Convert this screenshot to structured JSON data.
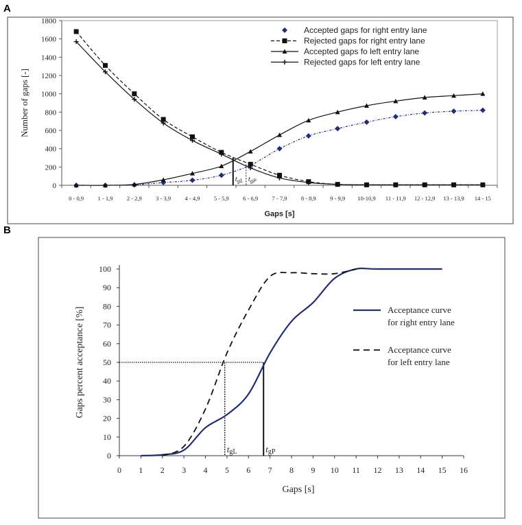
{
  "chart_data": [
    {
      "panel": "A",
      "type": "line",
      "title": "",
      "xlabel": "Gaps [s]",
      "ylabel": "Number of gaps [-]",
      "ylim": [
        0,
        1800
      ],
      "yticks": [
        0,
        200,
        400,
        600,
        800,
        1000,
        1200,
        1400,
        1600,
        1800
      ],
      "categories": [
        "0 - 0,9",
        "1 - 1,9",
        "2 - 2,9",
        "3 - 3,9",
        "4 - 4,9",
        "5 - 5,9",
        "6 - 6,9",
        "7 - 7,9",
        "8 - 8,9",
        "9 - 9,9",
        "10-10,9",
        "11 - 11,9",
        "12 - 12,9",
        "13 - 13,9",
        "14 - 15"
      ],
      "legend_position": "top-right",
      "series": [
        {
          "name": "Accepted gaps for right entry lane",
          "marker": "diamond",
          "line": "dash-dot",
          "color": "#1f2d7a",
          "values": [
            0,
            0,
            5,
            30,
            55,
            110,
            220,
            400,
            540,
            620,
            690,
            750,
            790,
            810,
            820
          ]
        },
        {
          "name": "Rejected gaps for right entry lane",
          "marker": "square",
          "line": "dash",
          "color": "#111111",
          "values": [
            1680,
            1310,
            1000,
            720,
            530,
            360,
            230,
            110,
            40,
            10,
            5,
            5,
            5,
            5,
            5
          ]
        },
        {
          "name": "Accepted gaps fo left entry lane",
          "marker": "triangle",
          "line": "solid",
          "color": "#111111",
          "values": [
            0,
            0,
            10,
            60,
            130,
            210,
            370,
            550,
            710,
            800,
            870,
            920,
            960,
            980,
            1000
          ]
        },
        {
          "name": "Rejected gaps for left entry lane",
          "marker": "plus",
          "line": "solid",
          "color": "#111111",
          "values": [
            1570,
            1240,
            940,
            680,
            490,
            340,
            190,
            80,
            30,
            10,
            5,
            5,
            5,
            5,
            5
          ]
        }
      ],
      "annotations": [
        {
          "label": "t",
          "subscript": "gL",
          "x": 5.9
        },
        {
          "label": "t",
          "subscript": "gP",
          "x": 6.35
        }
      ]
    },
    {
      "panel": "B",
      "type": "line",
      "title": "",
      "xlabel": "Gaps [s]",
      "ylabel": "Gaps percent acceptance [%]",
      "xlim": [
        0,
        16
      ],
      "ylim": [
        0,
        100
      ],
      "xticks": [
        0,
        1,
        2,
        3,
        4,
        5,
        6,
        7,
        8,
        9,
        10,
        11,
        12,
        13,
        14,
        15,
        16
      ],
      "yticks": [
        0,
        10,
        20,
        30,
        40,
        50,
        60,
        70,
        80,
        90,
        100
      ],
      "legend_position": "right",
      "series": [
        {
          "name_lines": [
            "Acceptance curve",
            "for right entry lane"
          ],
          "line": "solid",
          "color": "#1f2d7a",
          "x": [
            1,
            2,
            3,
            4,
            5,
            6,
            7,
            8,
            9,
            10,
            11,
            12,
            15
          ],
          "y": [
            0,
            0.5,
            3,
            15,
            22,
            33,
            55,
            72,
            82,
            95,
            100,
            100,
            100
          ]
        },
        {
          "name_lines": [
            "Acceptance curve",
            "for left entry lane"
          ],
          "line": "dash",
          "color": "#111111",
          "x": [
            2,
            3,
            4,
            5,
            6,
            7,
            8,
            9,
            10,
            11
          ],
          "y": [
            0,
            5,
            25,
            55,
            78,
            96,
            98,
            97.5,
            97.5,
            100
          ]
        }
      ],
      "reference_line_y": 50,
      "annotations": [
        {
          "label": "t",
          "subscript": "gL",
          "x": 4.9
        },
        {
          "label": "t",
          "subscript": "gP",
          "x": 6.7
        }
      ]
    }
  ],
  "figure": {
    "panel_a_label": "A",
    "panel_b_label": "B"
  }
}
